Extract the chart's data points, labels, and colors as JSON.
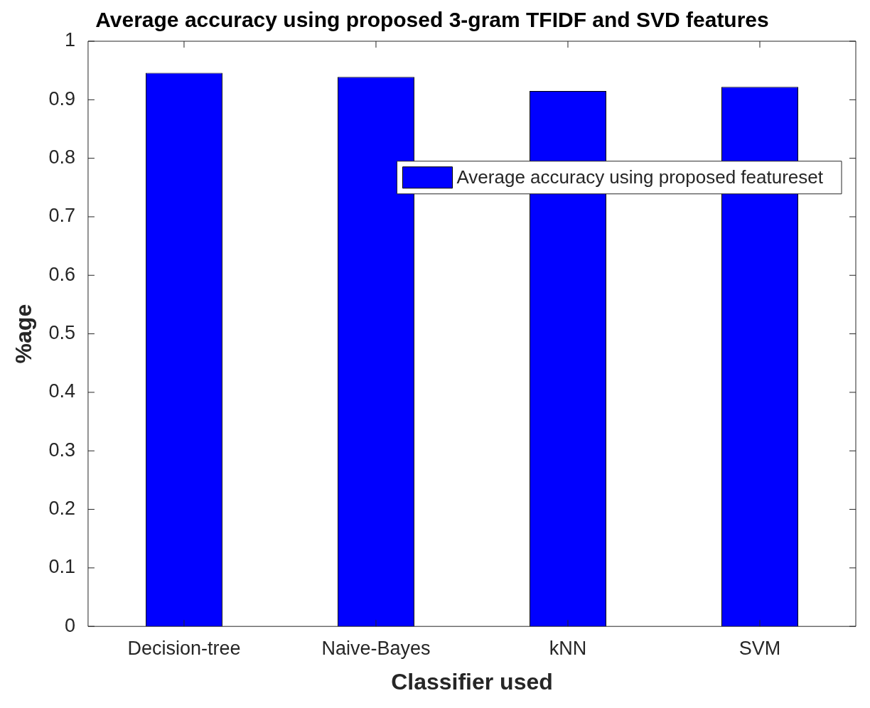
{
  "chart_data": {
    "type": "bar",
    "title": "Average accuracy using proposed 3-gram TFIDF and SVD features",
    "xlabel": "Classifier used",
    "ylabel": "%age",
    "categories": [
      "Decision-tree",
      "Naive-Bayes",
      "kNN",
      "SVM"
    ],
    "series": [
      {
        "name": "Average accuracy using proposed featureset",
        "color": "#0000ff",
        "values": [
          0.946,
          0.939,
          0.915,
          0.922
        ]
      }
    ],
    "ylim": [
      0,
      1
    ],
    "yticks": [
      0,
      0.1,
      0.2,
      0.3,
      0.4,
      0.5,
      0.6,
      0.7,
      0.8,
      0.9,
      1
    ],
    "legend": "top right"
  }
}
